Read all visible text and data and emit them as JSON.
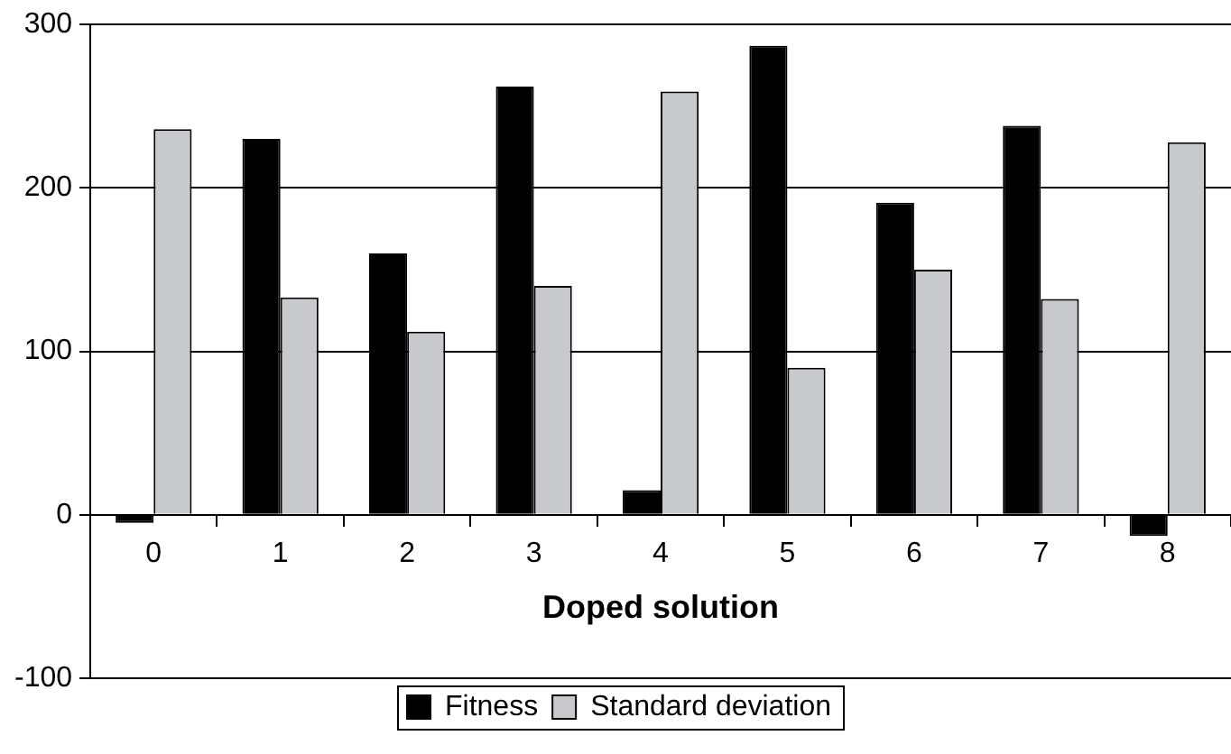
{
  "chart_data": {
    "type": "bar",
    "xlabel": "Doped solution",
    "categories": [
      "0",
      "1",
      "2",
      "3",
      "4",
      "5",
      "6",
      "7",
      "8"
    ],
    "series": [
      {
        "name": "Fitness",
        "color": "#000000",
        "values": [
          -5,
          230,
          160,
          262,
          15,
          287,
          191,
          238,
          -13
        ]
      },
      {
        "name": "Standard deviation",
        "color": "#c8c9cc",
        "values": [
          236,
          133,
          112,
          140,
          259,
          90,
          150,
          132,
          228
        ]
      }
    ],
    "ylim": [
      -100,
      300
    ],
    "yticks": [
      -100,
      0,
      100,
      200,
      300
    ],
    "grid": "y",
    "legend": "bottom"
  }
}
